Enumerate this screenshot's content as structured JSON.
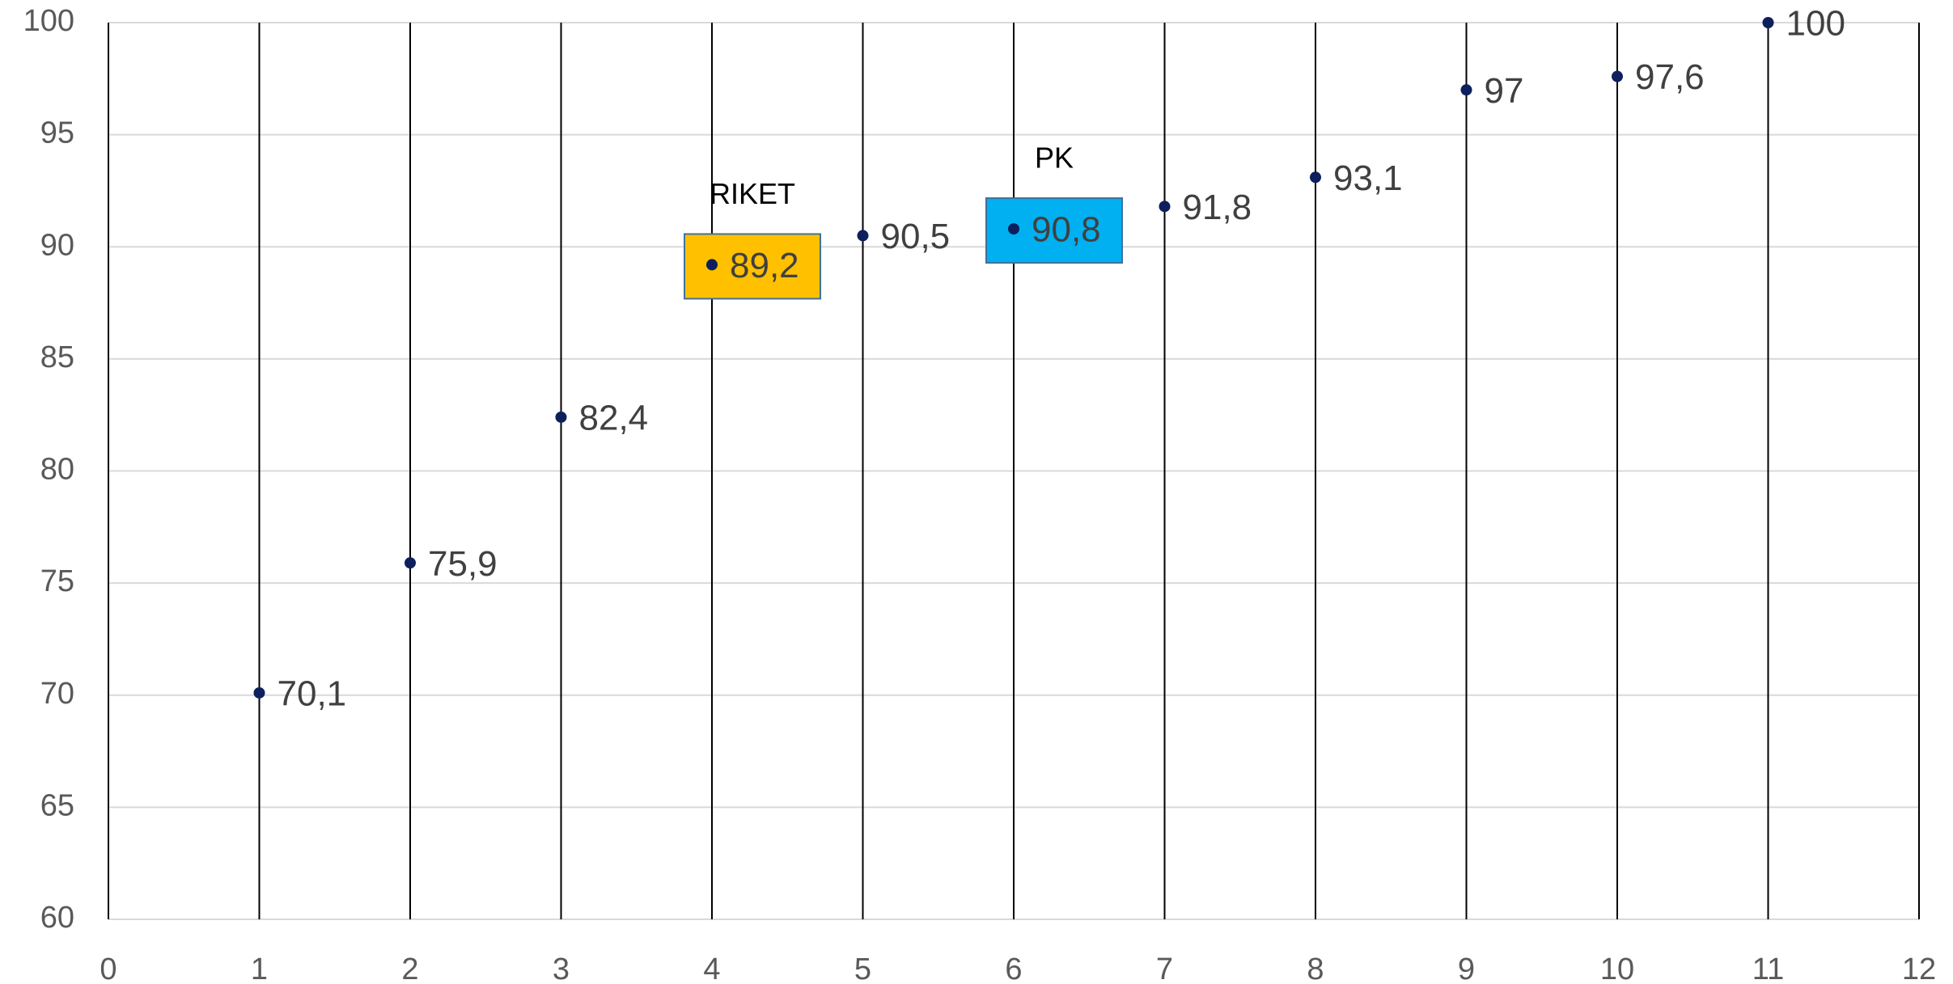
{
  "chart_data": {
    "type": "scatter",
    "x": [
      1,
      2,
      3,
      4,
      5,
      6,
      7,
      8,
      9,
      10,
      11
    ],
    "values": [
      70.1,
      75.9,
      82.4,
      89.2,
      90.5,
      90.8,
      91.8,
      93.1,
      97,
      97.6,
      100
    ],
    "value_labels": [
      "70,1",
      "75,9",
      "82,4",
      "89,2",
      "90,5",
      "90,8",
      "91,8",
      "93,1",
      "97",
      "97,6",
      "100"
    ],
    "color": "#0d1f5c",
    "xlim": [
      0,
      12
    ],
    "xticks": [
      0,
      1,
      2,
      3,
      4,
      5,
      6,
      7,
      8,
      9,
      10,
      11,
      12
    ],
    "ylim": [
      60,
      100
    ],
    "yticks": [
      60,
      65,
      70,
      75,
      80,
      85,
      90,
      95,
      100
    ],
    "grid": true,
    "highlights": [
      {
        "label": "RIKET",
        "x": 4,
        "color": "#ffc000"
      },
      {
        "label": "PK",
        "x": 6,
        "color": "#00b0f0"
      }
    ]
  }
}
